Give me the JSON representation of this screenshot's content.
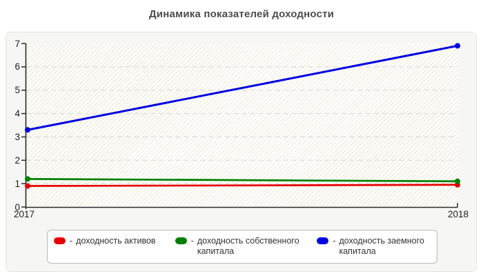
{
  "page": {
    "title": "Динамика показателей доходности"
  },
  "chart_data": {
    "type": "line",
    "title": "Динамика показателей доходности",
    "categories": [
      "2017",
      "2018"
    ],
    "series": [
      {
        "name": "доходность активов",
        "color": "#e80000",
        "values": [
          0.9,
          0.95
        ]
      },
      {
        "name": "доходность собственного капитала",
        "color": "#008000",
        "values": [
          1.2,
          1.1
        ]
      },
      {
        "name": "доходность заемного капитала",
        "color": "#0000e0",
        "values": [
          3.3,
          6.9
        ]
      }
    ],
    "xlabel": "",
    "ylabel": "",
    "ylim": [
      0,
      7
    ],
    "yticks": [
      0,
      1,
      2,
      3,
      4,
      5,
      6,
      7
    ],
    "grid": "horizontal-dashed",
    "legend_position": "bottom"
  },
  "legend": {
    "separator": "-"
  },
  "style_colors": {
    "axis": "#2a2a2a",
    "gridline": "#dcdcdc",
    "panel_background": "#f6f6f5",
    "title_text": "#4c4c4c"
  }
}
